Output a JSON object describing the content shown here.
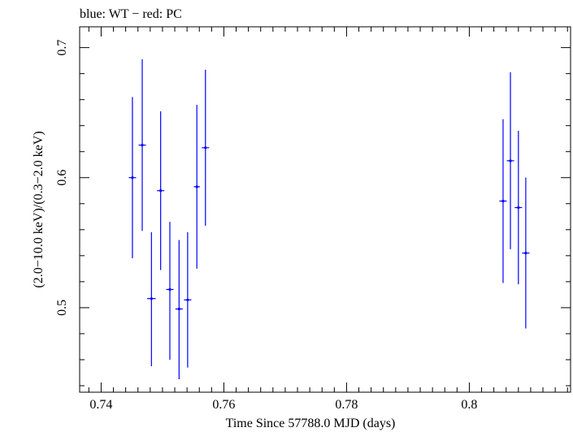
{
  "chart_data": {
    "type": "scatter",
    "title": "blue: WT − red: PC",
    "xlabel": "Time Since 57788.0 MJD (days)",
    "ylabel": "(2.0−10.0 keV)/(0.3−2.0 keV)",
    "xlim": [
      0.7365,
      0.8165
    ],
    "ylim": [
      0.435,
      0.716
    ],
    "x_ticks": [
      0.74,
      0.76,
      0.78,
      0.8
    ],
    "x_tick_labels": [
      "0.74",
      "0.76",
      "0.78",
      "0.8"
    ],
    "y_ticks": [
      0.5,
      0.6,
      0.7
    ],
    "y_tick_labels": [
      "0.5",
      "0.6",
      "0.7"
    ],
    "grid": false,
    "series": [
      {
        "name": "WT",
        "color": "#0000ff",
        "points": [
          {
            "x": 0.7451,
            "y": 0.6,
            "xerr": 0.0006,
            "yerr_lo": 0.062,
            "yerr_hi": 0.062
          },
          {
            "x": 0.7467,
            "y": 0.625,
            "xerr": 0.0006,
            "yerr_lo": 0.066,
            "yerr_hi": 0.066
          },
          {
            "x": 0.7482,
            "y": 0.507,
            "xerr": 0.0007,
            "yerr_lo": 0.052,
            "yerr_hi": 0.051
          },
          {
            "x": 0.7497,
            "y": 0.59,
            "xerr": 0.0006,
            "yerr_lo": 0.061,
            "yerr_hi": 0.061
          },
          {
            "x": 0.7512,
            "y": 0.514,
            "xerr": 0.0006,
            "yerr_lo": 0.054,
            "yerr_hi": 0.052
          },
          {
            "x": 0.7527,
            "y": 0.499,
            "xerr": 0.0006,
            "yerr_lo": 0.054,
            "yerr_hi": 0.053
          },
          {
            "x": 0.7541,
            "y": 0.506,
            "xerr": 0.0006,
            "yerr_lo": 0.052,
            "yerr_hi": 0.052
          },
          {
            "x": 0.7556,
            "y": 0.593,
            "xerr": 0.0005,
            "yerr_lo": 0.063,
            "yerr_hi": 0.063
          },
          {
            "x": 0.757,
            "y": 0.623,
            "xerr": 0.0006,
            "yerr_lo": 0.06,
            "yerr_hi": 0.06
          },
          {
            "x": 0.8055,
            "y": 0.582,
            "xerr": 0.0006,
            "yerr_lo": 0.063,
            "yerr_hi": 0.063
          },
          {
            "x": 0.8067,
            "y": 0.613,
            "xerr": 0.0006,
            "yerr_lo": 0.068,
            "yerr_hi": 0.068
          },
          {
            "x": 0.808,
            "y": 0.577,
            "xerr": 0.0006,
            "yerr_lo": 0.059,
            "yerr_hi": 0.059
          },
          {
            "x": 0.8092,
            "y": 0.542,
            "xerr": 0.0006,
            "yerr_lo": 0.058,
            "yerr_hi": 0.058
          }
        ]
      }
    ]
  }
}
